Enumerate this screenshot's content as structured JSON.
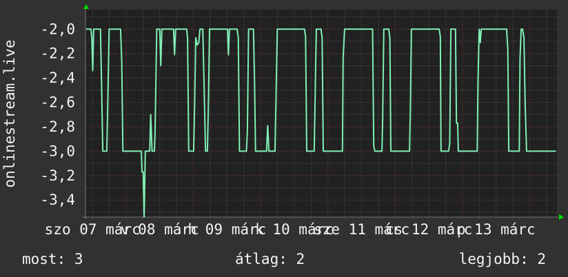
{
  "chart_data": {
    "type": "line",
    "ylabel": "onlinestream.live",
    "xlabel": "",
    "ylim": [
      -3.54,
      -1.84
    ],
    "xlim": [
      "07 09:45",
      "14 09:45"
    ],
    "grid": true,
    "yticks": [
      {
        "value": -2.0,
        "label": "-2,0"
      },
      {
        "value": -2.2,
        "label": "-2,2"
      },
      {
        "value": -2.4,
        "label": "-2,4"
      },
      {
        "value": -2.6,
        "label": "-2,6"
      },
      {
        "value": -2.8,
        "label": "-2,8"
      },
      {
        "value": -3.0,
        "label": "-3,0"
      },
      {
        "value": -3.2,
        "label": "-3,2"
      },
      {
        "value": -3.4,
        "label": "-3,4"
      }
    ],
    "xticks": [
      {
        "time": "07 12:00",
        "label": "szo 07 márc"
      },
      {
        "time": "08 12:00",
        "label": "v 08 márc"
      },
      {
        "time": "09 12:00",
        "label": "h 09 márc"
      },
      {
        "time": "10 12:00",
        "label": "k 10 márc"
      },
      {
        "time": "11 12:00",
        "label": "sze 11 márc"
      },
      {
        "time": "12 12:00",
        "label": "cs 12 márc"
      },
      {
        "time": "13 12:00",
        "label": "p 13 márc"
      }
    ],
    "colors": {
      "background": "#313131",
      "plot_background": "#212121",
      "line": "#80f0b6",
      "major_grid": "#8a3c3c",
      "minor_grid": "#5a5a5a",
      "axis_arrow": "#00dd00"
    },
    "series": [
      {
        "points": [
          [
            "07 09:45",
            -2.0
          ],
          [
            "07 11:25",
            -2.0
          ],
          [
            "07 11:45",
            -2.07
          ],
          [
            "07 12:05",
            -2.34
          ],
          [
            "07 12:25",
            -2.0
          ],
          [
            "07 14:50",
            -2.0
          ],
          [
            "07 15:15",
            -2.46
          ],
          [
            "07 15:40",
            -3.0
          ],
          [
            "07 17:05",
            -3.0
          ],
          [
            "07 17:20",
            -2.74
          ],
          [
            "07 17:55",
            -2.0
          ],
          [
            "07 22:00",
            -2.0
          ],
          [
            "07 22:25",
            -2.26
          ],
          [
            "07 22:50",
            -3.0
          ],
          [
            "08 05:25",
            -3.0
          ],
          [
            "08 05:40",
            -3.17
          ],
          [
            "08 06:05",
            -3.17
          ],
          [
            "08 06:25",
            -3.54
          ],
          [
            "08 06:50",
            -3.0
          ],
          [
            "08 08:25",
            -3.0
          ],
          [
            "08 08:45",
            -2.7
          ],
          [
            "08 09:15",
            -3.0
          ],
          [
            "08 10:05",
            -3.0
          ],
          [
            "08 10:20",
            -2.83
          ],
          [
            "08 10:55",
            -2.0
          ],
          [
            "08 12:00",
            -2.0
          ],
          [
            "08 12:20",
            -2.3
          ],
          [
            "08 12:45",
            -2.0
          ],
          [
            "08 16:55",
            -2.0
          ],
          [
            "08 17:15",
            -2.21
          ],
          [
            "08 17:40",
            -2.0
          ],
          [
            "08 21:35",
            -2.0
          ],
          [
            "08 21:55",
            -2.07
          ],
          [
            "08 22:20",
            -3.0
          ],
          [
            "09 00:05",
            -3.0
          ],
          [
            "09 00:25",
            -2.63
          ],
          [
            "09 00:50",
            -2.07
          ],
          [
            "09 01:20",
            -2.13
          ],
          [
            "09 01:55",
            -2.11
          ],
          [
            "09 02:20",
            -2.0
          ],
          [
            "09 03:20",
            -2.0
          ],
          [
            "09 03:55",
            -2.57
          ],
          [
            "09 04:20",
            -3.0
          ],
          [
            "09 05:00",
            -3.0
          ],
          [
            "09 05:25",
            -2.53
          ],
          [
            "09 05:45",
            -2.0
          ],
          [
            "09 12:10",
            -2.0
          ],
          [
            "09 12:30",
            -2.21
          ],
          [
            "09 12:50",
            -2.0
          ],
          [
            "09 15:35",
            -2.0
          ],
          [
            "09 16:00",
            -2.07
          ],
          [
            "09 16:25",
            -3.0
          ],
          [
            "09 18:55",
            -3.0
          ],
          [
            "09 19:15",
            -2.83
          ],
          [
            "09 19:40",
            -2.0
          ],
          [
            "09 21:25",
            -2.0
          ],
          [
            "09 21:50",
            -2.47
          ],
          [
            "09 22:10",
            -3.0
          ],
          [
            "10 02:05",
            -3.0
          ],
          [
            "10 02:30",
            -2.79
          ],
          [
            "10 02:55",
            -3.0
          ],
          [
            "10 05:05",
            -3.0
          ],
          [
            "10 05:25",
            -2.63
          ],
          [
            "10 05:55",
            -2.0
          ],
          [
            "10 15:35",
            -2.0
          ],
          [
            "10 16:00",
            -2.06
          ],
          [
            "10 16:25",
            -3.0
          ],
          [
            "10 19:05",
            -3.0
          ],
          [
            "10 19:25",
            -2.55
          ],
          [
            "10 19:50",
            -2.0
          ],
          [
            "10 21:30",
            -2.0
          ],
          [
            "10 21:55",
            -2.07
          ],
          [
            "10 22:20",
            -3.0
          ],
          [
            "11 05:10",
            -3.0
          ],
          [
            "11 05:25",
            -2.23
          ],
          [
            "11 05:55",
            -2.0
          ],
          [
            "11 15:55",
            -2.0
          ],
          [
            "11 16:20",
            -2.96
          ],
          [
            "11 16:45",
            -3.0
          ],
          [
            "11 19:15",
            -3.0
          ],
          [
            "11 19:30",
            -2.74
          ],
          [
            "11 19:55",
            -2.0
          ],
          [
            "11 21:40",
            -2.0
          ],
          [
            "11 22:05",
            -2.07
          ],
          [
            "11 22:25",
            -3.0
          ],
          [
            "12 05:05",
            -3.0
          ],
          [
            "12 05:25",
            -2.63
          ],
          [
            "12 05:45",
            -2.0
          ],
          [
            "12 15:40",
            -2.0
          ],
          [
            "12 16:05",
            -2.06
          ],
          [
            "12 16:20",
            -3.0
          ],
          [
            "12 19:00",
            -3.0
          ],
          [
            "12 19:25",
            -2.94
          ],
          [
            "12 19:50",
            -2.0
          ],
          [
            "12 21:30",
            -2.0
          ],
          [
            "12 21:50",
            -2.77
          ],
          [
            "12 22:15",
            -2.77
          ],
          [
            "12 22:30",
            -3.0
          ],
          [
            "13 05:15",
            -3.0
          ],
          [
            "13 05:30",
            -2.44
          ],
          [
            "13 05:55",
            -2.0
          ],
          [
            "13 06:20",
            -2.11
          ],
          [
            "13 06:40",
            -2.0
          ],
          [
            "13 15:45",
            -2.0
          ],
          [
            "13 16:10",
            -2.17
          ],
          [
            "13 16:30",
            -3.0
          ],
          [
            "13 20:15",
            -3.0
          ],
          [
            "13 20:30",
            -2.24
          ],
          [
            "13 20:55",
            -2.0
          ],
          [
            "13 21:25",
            -2.0
          ],
          [
            "13 21:55",
            -2.07
          ],
          [
            "13 22:20",
            -2.6
          ],
          [
            "13 22:50",
            -3.0
          ],
          [
            "14 09:20",
            -3.0
          ]
        ]
      }
    ]
  },
  "legend": {
    "current": "most: 3",
    "average": "átlag: 2",
    "best": "legjobb: 2"
  }
}
